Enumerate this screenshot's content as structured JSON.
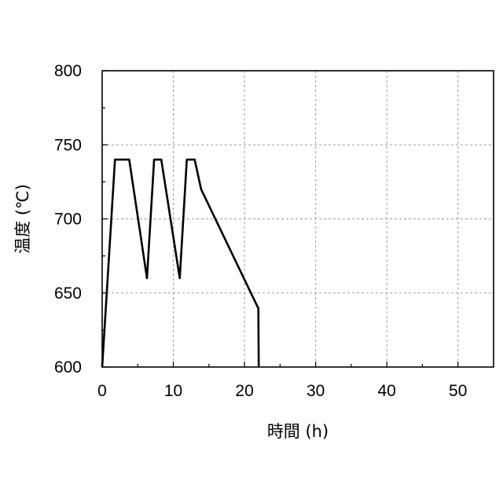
{
  "chart_data": {
    "type": "line",
    "title": "",
    "xlabel": "時間 (h)",
    "ylabel": "温度 (℃)",
    "xlim": [
      0,
      55
    ],
    "ylim": [
      600,
      800
    ],
    "xticks": [
      0,
      10,
      20,
      30,
      40,
      50
    ],
    "yticks": [
      600,
      650,
      700,
      750,
      800
    ],
    "x_minor_ticks": [
      5,
      15,
      25,
      35,
      45
    ],
    "y_minor_ticks": [
      625,
      675,
      725,
      775
    ],
    "grid": true,
    "legend": "none",
    "line_color": "#000000",
    "series": [
      {
        "x": [
          0,
          1.8,
          3.8,
          6.3,
          7.3,
          8.3,
          10.9,
          11.9,
          13.0,
          13.9,
          21.9,
          21.95,
          22.0
        ],
        "y": [
          600,
          740,
          740,
          660,
          740,
          740,
          660,
          740,
          740,
          720,
          640,
          640,
          600
        ]
      }
    ]
  }
}
